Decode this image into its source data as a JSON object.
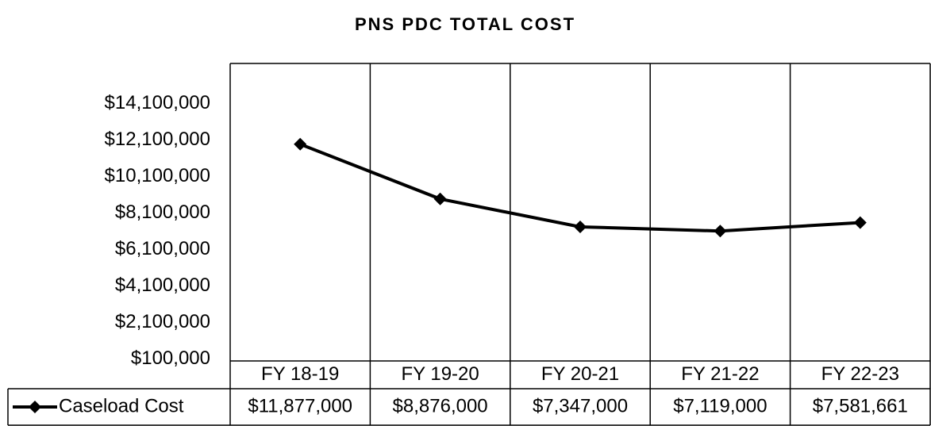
{
  "chart_data": {
    "type": "line",
    "title": "PNS PDC TOTAL COST",
    "categories": [
      "FY 18-19",
      "FY 19-20",
      "FY 20-21",
      "FY 21-22",
      "FY 22-23"
    ],
    "series": [
      {
        "name": "Caseload Cost",
        "color": "#000000",
        "values": [
          11877000,
          8876000,
          7347000,
          7119000,
          7581661
        ],
        "value_labels": [
          "$11,877,000",
          "$8,876,000",
          "$7,347,000",
          "$7,119,000",
          "$7,581,661"
        ]
      }
    ],
    "ylim": [
      0,
      16300000
    ],
    "yticks": [
      {
        "value": 100000,
        "label": "$100,000"
      },
      {
        "value": 2100000,
        "label": "$2,100,000"
      },
      {
        "value": 4100000,
        "label": "$4,100,000"
      },
      {
        "value": 6100000,
        "label": "$6,100,000"
      },
      {
        "value": 8100000,
        "label": "$8,100,000"
      },
      {
        "value": 10100000,
        "label": "$10,100,000"
      },
      {
        "value": 12100000,
        "label": "$12,100,000"
      },
      {
        "value": 14100000,
        "label": "$14,100,000"
      }
    ],
    "grid": true
  }
}
